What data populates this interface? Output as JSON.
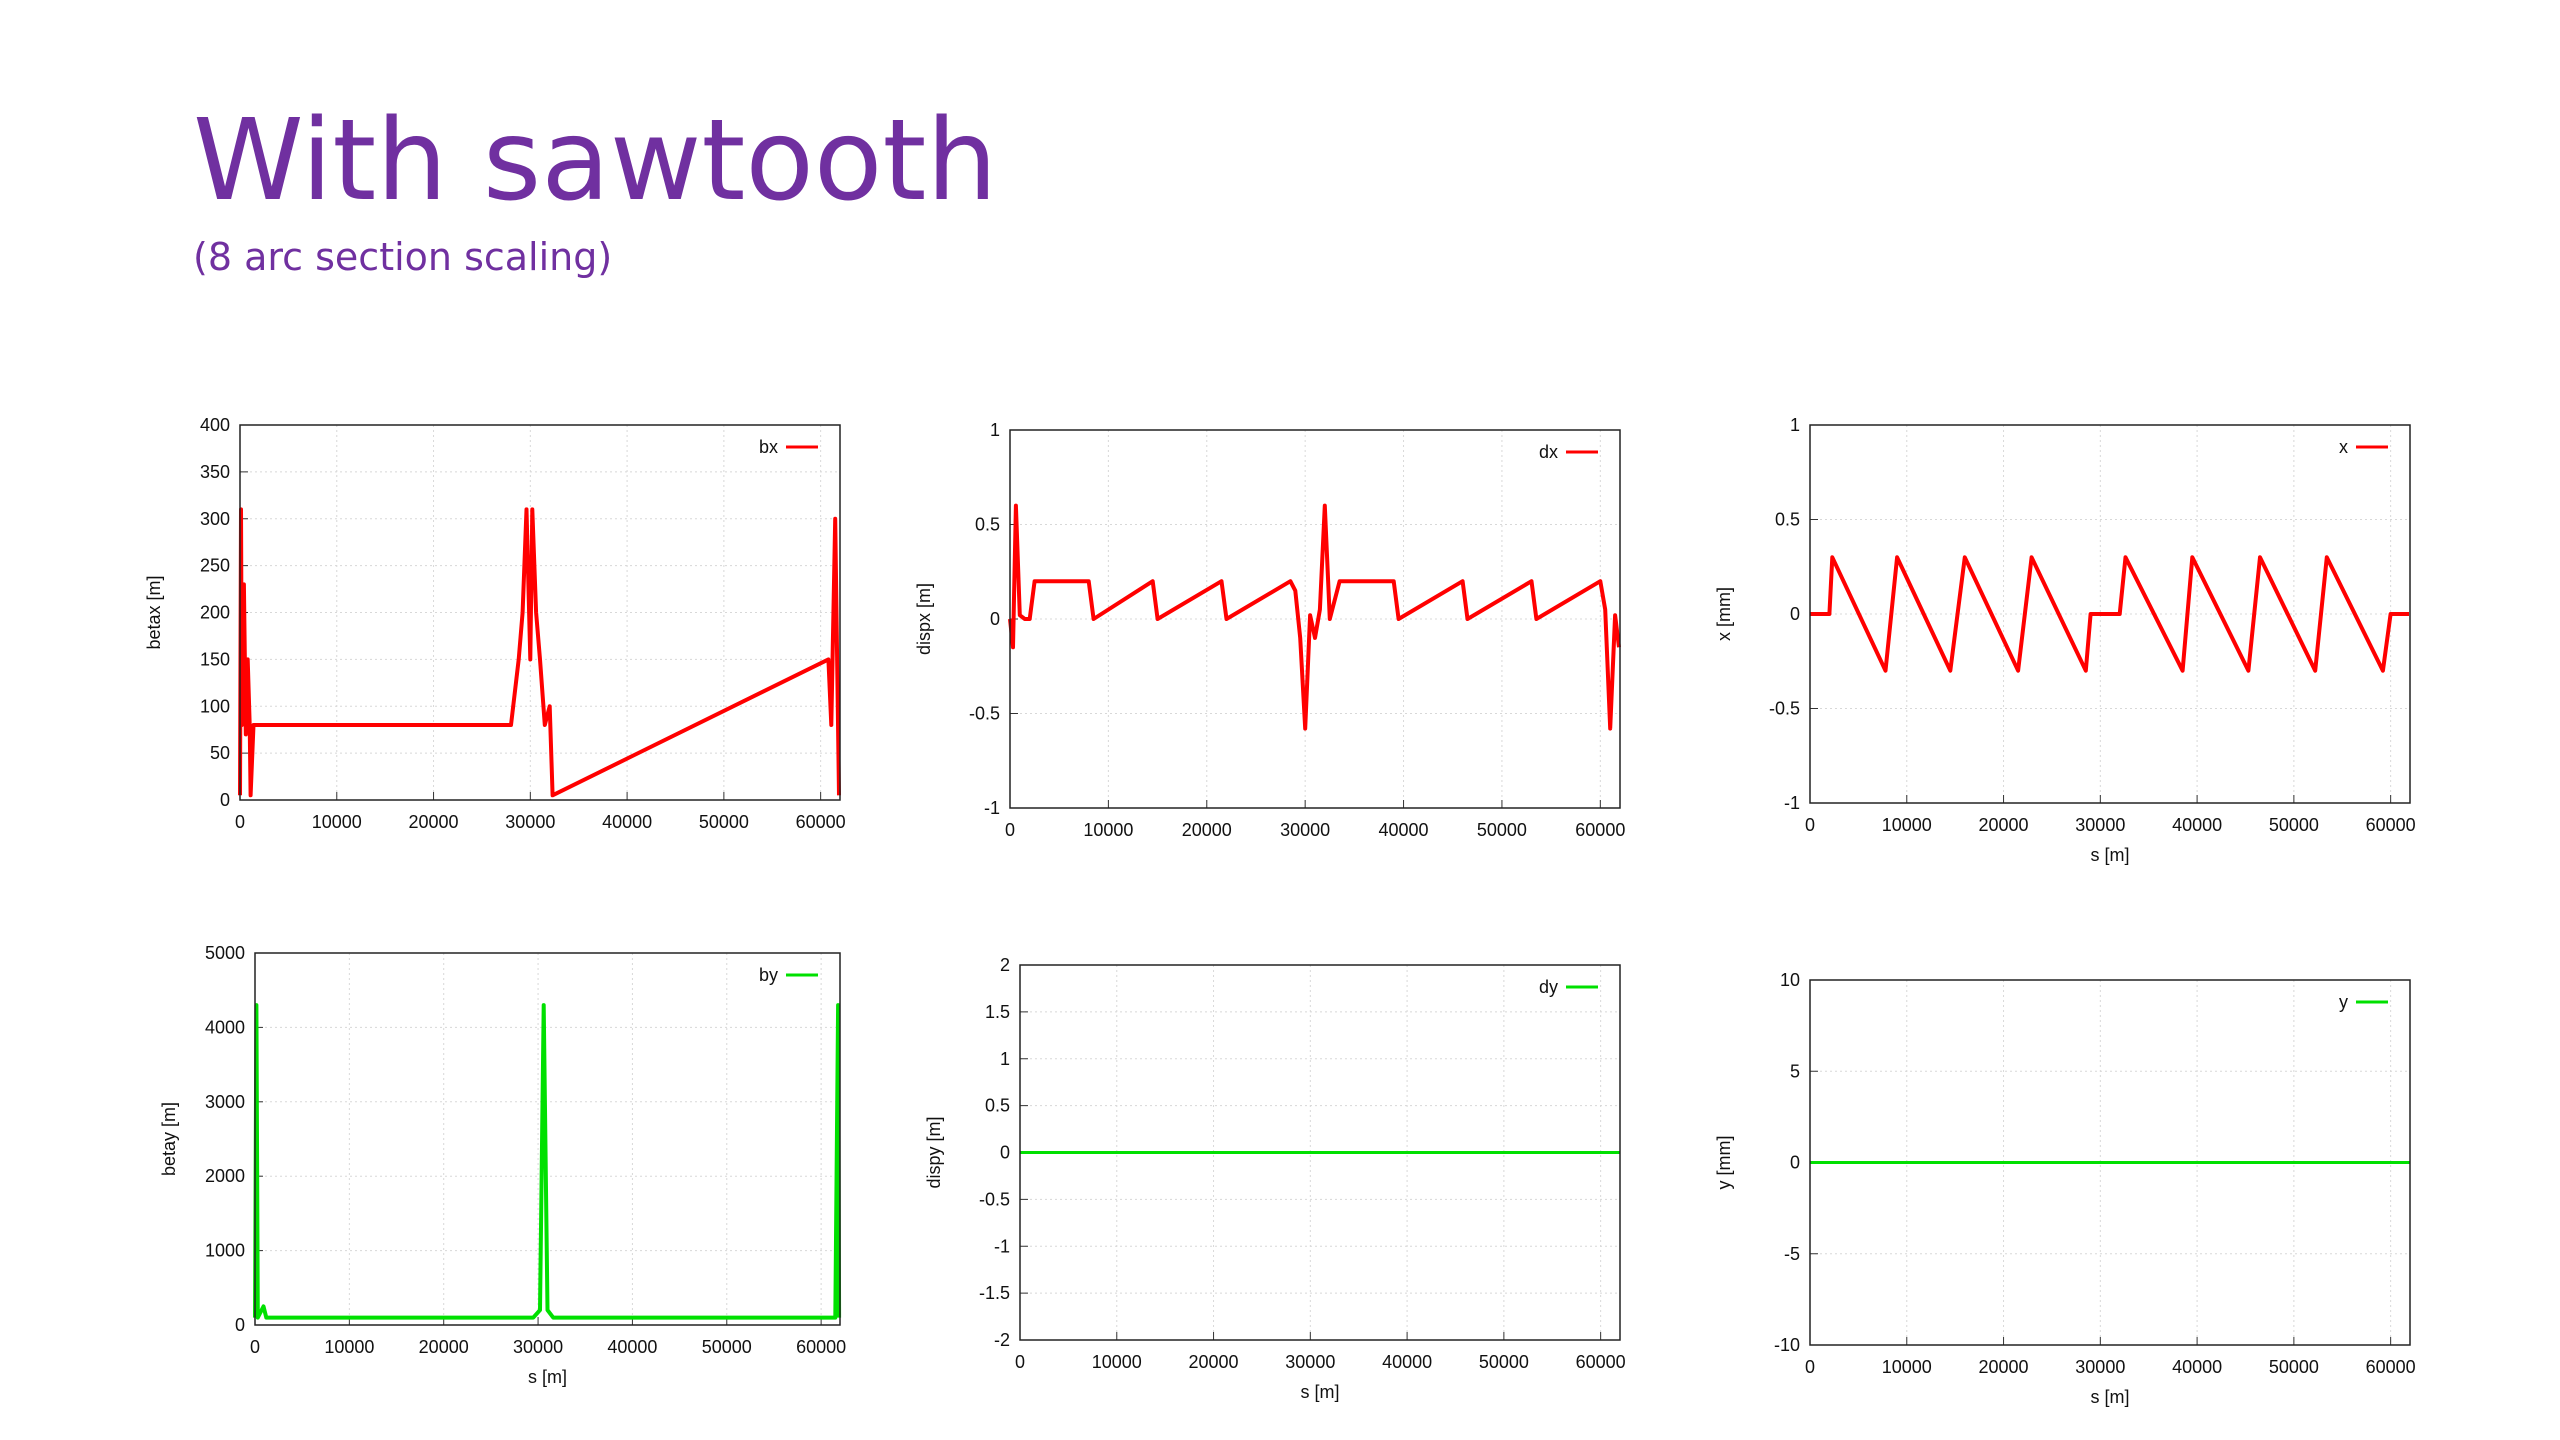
{
  "slide": {
    "title": "With sawtooth",
    "subtitle": "(8 arc section scaling)"
  },
  "colors": {
    "title": "#7030a0",
    "red": "#ff0000",
    "green": "#00e000"
  },
  "chart_data": [
    {
      "id": "betax",
      "type": "line",
      "title": "",
      "xlabel": "",
      "ylabel": "betax [m]",
      "xlim": [
        0,
        62000
      ],
      "ylim": [
        0,
        400
      ],
      "grid": true,
      "legend_position": "top-right",
      "xticks": [
        0,
        10000,
        20000,
        30000,
        40000,
        50000,
        60000
      ],
      "yticks": [
        0,
        50,
        100,
        150,
        200,
        250,
        300,
        350,
        400
      ],
      "series": [
        {
          "name": "bx",
          "color": "#ff0000",
          "x": [
            0,
            100,
            200,
            400,
            600,
            800,
            1000,
            1100,
            1400,
            28000,
            28800,
            29200,
            29600,
            30000,
            30200,
            30600,
            31000,
            31500,
            32000,
            32300,
            60800,
            61100,
            61500,
            61900
          ],
          "y": [
            5,
            310,
            80,
            230,
            70,
            150,
            80,
            5,
            80,
            80,
            150,
            200,
            310,
            150,
            310,
            200,
            150,
            80,
            100,
            5,
            150,
            80,
            300,
            5
          ]
        }
      ]
    },
    {
      "id": "dispx",
      "type": "line",
      "title": "",
      "xlabel": "",
      "ylabel": "dispx [m]",
      "xlim": [
        0,
        62000
      ],
      "ylim": [
        -1,
        1
      ],
      "grid": true,
      "legend_position": "top-right",
      "xticks": [
        0,
        10000,
        20000,
        30000,
        40000,
        50000,
        60000
      ],
      "yticks": [
        -1,
        -0.5,
        0,
        0.5,
        1
      ],
      "series": [
        {
          "name": "dx",
          "color": "#ff0000",
          "x": [
            0,
            300,
            600,
            1000,
            1500,
            2000,
            2500,
            8000,
            8500,
            14500,
            15000,
            21500,
            22000,
            28500,
            29000,
            29500,
            30000,
            30500,
            31000,
            31500,
            32000,
            32500,
            33500,
            39000,
            39500,
            46000,
            46500,
            53000,
            53500,
            60000,
            60500,
            61000,
            61500,
            61900
          ],
          "y": [
            0,
            -0.15,
            0.6,
            0.02,
            0,
            0,
            0.2,
            0.2,
            0,
            0.2,
            0,
            0.2,
            0,
            0.2,
            0.15,
            -0.1,
            -0.58,
            0.02,
            -0.1,
            0.05,
            0.6,
            0,
            0.2,
            0.2,
            0,
            0.2,
            0,
            0.2,
            0,
            0.2,
            0.05,
            -0.58,
            0.02,
            -0.15
          ]
        }
      ]
    },
    {
      "id": "x_orbit",
      "type": "line",
      "title": "",
      "xlabel": "s [m]",
      "ylabel": "x [mm]",
      "xlim": [
        0,
        62000
      ],
      "ylim": [
        -1,
        1
      ],
      "grid": true,
      "legend_position": "top-right",
      "xticks": [
        0,
        10000,
        20000,
        30000,
        40000,
        50000,
        60000
      ],
      "yticks": [
        -1,
        -0.5,
        0,
        0.5,
        1
      ],
      "series": [
        {
          "name": "x",
          "color": "#ff0000",
          "x": [
            0,
            2000,
            2300,
            7800,
            9000,
            14500,
            16000,
            21500,
            22900,
            28500,
            29000,
            32000,
            32600,
            38500,
            39500,
            45300,
            46500,
            52200,
            53400,
            59200,
            60000,
            61900
          ],
          "y": [
            0,
            0,
            0.3,
            -0.3,
            0.3,
            -0.3,
            0.3,
            -0.3,
            0.3,
            -0.3,
            0,
            0,
            0.3,
            -0.3,
            0.3,
            -0.3,
            0.3,
            -0.3,
            0.3,
            -0.3,
            0,
            0
          ]
        }
      ]
    },
    {
      "id": "betay",
      "type": "line",
      "title": "",
      "xlabel": "s [m]",
      "ylabel": "betay [m]",
      "xlim": [
        0,
        62000
      ],
      "ylim": [
        0,
        5000
      ],
      "grid": true,
      "legend_position": "top-right",
      "xticks": [
        0,
        10000,
        20000,
        30000,
        40000,
        50000,
        60000
      ],
      "yticks": [
        0,
        1000,
        2000,
        3000,
        4000,
        5000
      ],
      "series": [
        {
          "name": "by",
          "color": "#00e000",
          "x": [
            0,
            150,
            300,
            900,
            1200,
            29500,
            30200,
            30600,
            31000,
            31600,
            61500,
            61800,
            61900
          ],
          "y": [
            100,
            4300,
            100,
            250,
            100,
            100,
            200,
            4300,
            200,
            100,
            100,
            4300,
            100
          ]
        }
      ]
    },
    {
      "id": "dispy",
      "type": "line",
      "title": "",
      "xlabel": "s [m]",
      "ylabel": "dispy [m]",
      "xlim": [
        0,
        62000
      ],
      "ylim": [
        -2,
        2
      ],
      "grid": true,
      "legend_position": "top-right",
      "xticks": [
        0,
        10000,
        20000,
        30000,
        40000,
        50000,
        60000
      ],
      "yticks": [
        -2,
        -1.5,
        -1,
        -0.5,
        0,
        0.5,
        1,
        1.5,
        2
      ],
      "series": [
        {
          "name": "dy",
          "color": "#00e000",
          "x": [
            0,
            62000
          ],
          "y": [
            0,
            0
          ]
        }
      ]
    },
    {
      "id": "y_orbit",
      "type": "line",
      "title": "",
      "xlabel": "s [m]",
      "ylabel": "y [mm]",
      "xlim": [
        0,
        62000
      ],
      "ylim": [
        -10,
        10
      ],
      "grid": true,
      "legend_position": "top-right",
      "xticks": [
        0,
        10000,
        20000,
        30000,
        40000,
        50000,
        60000
      ],
      "yticks": [
        -10,
        -5,
        0,
        5,
        10
      ],
      "series": [
        {
          "name": "y",
          "color": "#00e000",
          "x": [
            0,
            62000
          ],
          "y": [
            0,
            0
          ]
        }
      ]
    }
  ]
}
